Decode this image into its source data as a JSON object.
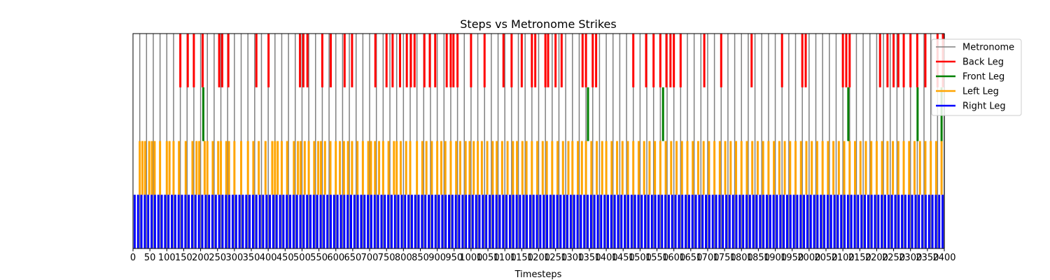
{
  "chart_data": {
    "type": "event-raster",
    "title": "Steps vs Metronome Strikes",
    "xlabel": "Timesteps",
    "ylabel": "",
    "xlim": [
      0,
      2400
    ],
    "xtick_step": 50,
    "grid": false,
    "legend_placement": "top-right",
    "series": [
      {
        "name": "Metronome",
        "color": "#808080",
        "band": [
          0,
          1
        ],
        "x": [
          20,
          40,
          60,
          80,
          100,
          120,
          140,
          160,
          180,
          200,
          220,
          240,
          260,
          280,
          300,
          320,
          340,
          360,
          380,
          400,
          420,
          440,
          460,
          480,
          500,
          520,
          540,
          560,
          580,
          600,
          620,
          640,
          660,
          680,
          700,
          720,
          740,
          760,
          780,
          800,
          820,
          840,
          860,
          880,
          900,
          920,
          940,
          960,
          980,
          1000,
          1020,
          1040,
          1060,
          1080,
          1100,
          1120,
          1140,
          1160,
          1180,
          1200,
          1220,
          1240,
          1260,
          1280,
          1300,
          1320,
          1340,
          1360,
          1380,
          1400,
          1420,
          1440,
          1460,
          1480,
          1500,
          1520,
          1540,
          1560,
          1580,
          1600,
          1620,
          1640,
          1660,
          1680,
          1700,
          1720,
          1740,
          1760,
          1780,
          1800,
          1820,
          1840,
          1860,
          1880,
          1900,
          1920,
          1940,
          1960,
          1980,
          2000,
          2020,
          2040,
          2060,
          2080,
          2100,
          2120,
          2140,
          2160,
          2180,
          2200,
          2220,
          2240,
          2260,
          2280,
          2300,
          2320,
          2340,
          2360,
          2380,
          2400
        ]
      },
      {
        "name": "Back Leg",
        "color": "#ff0000",
        "band": [
          0.75,
          1
        ],
        "x": [
          140,
          162,
          180,
          206,
          255,
          264,
          282,
          365,
          401,
          494,
          504,
          516,
          560,
          585,
          626,
          648,
          717,
          750,
          768,
          790,
          810,
          822,
          833,
          862,
          878,
          894,
          928,
          940,
          948,
          960,
          1000,
          1040,
          1096,
          1120,
          1150,
          1180,
          1190,
          1220,
          1228,
          1250,
          1268,
          1330,
          1340,
          1360,
          1370,
          1480,
          1518,
          1540,
          1560,
          1578,
          1590,
          1600,
          1620,
          1690,
          1740,
          1830,
          1920,
          1980,
          1990,
          2100,
          2110,
          2120,
          2210,
          2232,
          2250,
          2264,
          2280,
          2300,
          2320,
          2344,
          2380,
          2396
        ]
      },
      {
        "name": "Front Leg",
        "color": "#008000",
        "band": [
          0.5,
          0.75
        ],
        "x": [
          208,
          1346,
          1568,
          2116,
          2321,
          2392
        ]
      },
      {
        "name": "Left Leg",
        "color": "#ffa500",
        "band": [
          0.25,
          0.5
        ],
        "x": [
          20,
          28,
          36,
          48,
          56,
          64,
          80,
          100,
          108,
          120,
          136,
          156,
          176,
          188,
          196,
          212,
          220,
          236,
          252,
          260,
          276,
          284,
          300,
          320,
          340,
          356,
          372,
          392,
          412,
          420,
          428,
          440,
          456,
          476,
          488,
          496,
          508,
          520,
          536,
          548,
          556,
          568,
          584,
          600,
          612,
          624,
          636,
          648,
          664,
          680,
          696,
          704,
          716,
          728,
          740,
          756,
          772,
          780,
          792,
          808,
          820,
          840,
          856,
          868,
          884,
          900,
          912,
          924,
          940,
          956,
          968,
          984,
          996,
          1008,
          1020,
          1032,
          1048,
          1064,
          1076,
          1092,
          1108,
          1124,
          1136,
          1152,
          1164,
          1180,
          1196,
          1212,
          1224,
          1240,
          1256,
          1272,
          1288,
          1300,
          1316,
          1328,
          1340,
          1356,
          1372,
          1388,
          1400,
          1416,
          1432,
          1448,
          1464,
          1480,
          1496,
          1512,
          1528,
          1544,
          1560,
          1576,
          1592,
          1608,
          1624,
          1640,
          1656,
          1672,
          1688,
          1704,
          1720,
          1736,
          1752,
          1768,
          1784,
          1800,
          1816,
          1832,
          1848,
          1864,
          1880,
          1896,
          1912,
          1928,
          1944,
          1960,
          1976,
          1992,
          2008,
          2024,
          2040,
          2056,
          2072,
          2088,
          2104,
          2120,
          2136,
          2152,
          2168,
          2184,
          2200,
          2216,
          2232,
          2248,
          2264,
          2280,
          2296,
          2312,
          2328,
          2344,
          2360,
          2376,
          2392
        ]
      },
      {
        "name": "Right Leg",
        "color": "#0000ff",
        "band": [
          0,
          0.25
        ],
        "x": [
          5,
          15,
          25,
          35,
          45,
          55,
          65,
          75,
          85,
          95,
          105,
          115,
          125,
          135,
          145,
          155,
          165,
          175,
          185,
          195,
          205,
          215,
          225,
          235,
          245,
          255,
          265,
          275,
          285,
          295,
          305,
          315,
          325,
          335,
          345,
          355,
          365,
          375,
          385,
          395,
          405,
          415,
          425,
          435,
          445,
          455,
          465,
          475,
          485,
          495,
          505,
          515,
          525,
          535,
          545,
          555,
          565,
          575,
          585,
          595,
          605,
          615,
          625,
          635,
          645,
          655,
          665,
          675,
          685,
          695,
          705,
          715,
          725,
          735,
          745,
          755,
          765,
          775,
          785,
          795,
          805,
          815,
          825,
          835,
          845,
          855,
          865,
          875,
          885,
          895,
          905,
          915,
          925,
          935,
          945,
          955,
          965,
          975,
          985,
          995,
          1005,
          1015,
          1025,
          1035,
          1045,
          1055,
          1065,
          1075,
          1085,
          1095,
          1105,
          1115,
          1125,
          1135,
          1145,
          1155,
          1165,
          1175,
          1185,
          1195,
          1205,
          1215,
          1225,
          1235,
          1245,
          1255,
          1265,
          1275,
          1285,
          1295,
          1305,
          1315,
          1325,
          1335,
          1345,
          1355,
          1365,
          1375,
          1385,
          1395,
          1405,
          1415,
          1425,
          1435,
          1445,
          1455,
          1465,
          1475,
          1485,
          1495,
          1505,
          1515,
          1525,
          1535,
          1545,
          1555,
          1565,
          1575,
          1585,
          1595,
          1605,
          1615,
          1625,
          1635,
          1645,
          1655,
          1665,
          1675,
          1685,
          1695,
          1705,
          1715,
          1725,
          1735,
          1745,
          1755,
          1765,
          1775,
          1785,
          1795,
          1805,
          1815,
          1825,
          1835,
          1845,
          1855,
          1865,
          1875,
          1885,
          1895,
          1905,
          1915,
          1925,
          1935,
          1945,
          1955,
          1965,
          1975,
          1985,
          1995,
          2005,
          2015,
          2025,
          2035,
          2045,
          2055,
          2065,
          2075,
          2085,
          2095,
          2105,
          2115,
          2125,
          2135,
          2145,
          2155,
          2165,
          2175,
          2185,
          2195,
          2205,
          2215,
          2225,
          2235,
          2245,
          2255,
          2265,
          2275,
          2285,
          2295,
          2305,
          2315,
          2325,
          2335,
          2345,
          2355,
          2365,
          2375,
          2385,
          2395
        ]
      }
    ]
  }
}
